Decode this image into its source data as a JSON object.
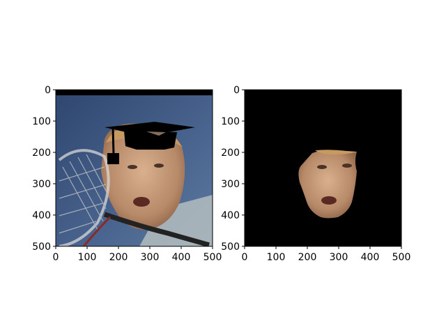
{
  "chart_data": [
    {
      "type": "image",
      "xlim": [
        0,
        500
      ],
      "ylim": [
        500,
        0
      ],
      "xticks": [
        0,
        100,
        200,
        300,
        400,
        500
      ],
      "yticks": [
        0,
        100,
        200,
        300,
        400,
        500
      ],
      "xtick_labels": [
        "0",
        "100",
        "200",
        "300",
        "400",
        "500"
      ],
      "ytick_labels": [
        "0",
        "100",
        "200",
        "300",
        "400",
        "500"
      ],
      "content": "photo of a tennis player's face wearing a drawn black graduation cap"
    },
    {
      "type": "image",
      "xlim": [
        0,
        500
      ],
      "ylim": [
        500,
        0
      ],
      "xticks": [
        0,
        100,
        200,
        300,
        400,
        500
      ],
      "yticks": [
        0,
        100,
        200,
        300,
        400,
        500
      ],
      "xtick_labels": [
        "0",
        "100",
        "200",
        "300",
        "400",
        "500"
      ],
      "ytick_labels": [
        "0",
        "100",
        "200",
        "300",
        "400",
        "500"
      ],
      "content": "segmented face region on black background"
    }
  ],
  "colors": {
    "background": "#ffffff",
    "sky": "#3a5278",
    "skin": "#c9a07e",
    "mask_bg": "#000000"
  }
}
